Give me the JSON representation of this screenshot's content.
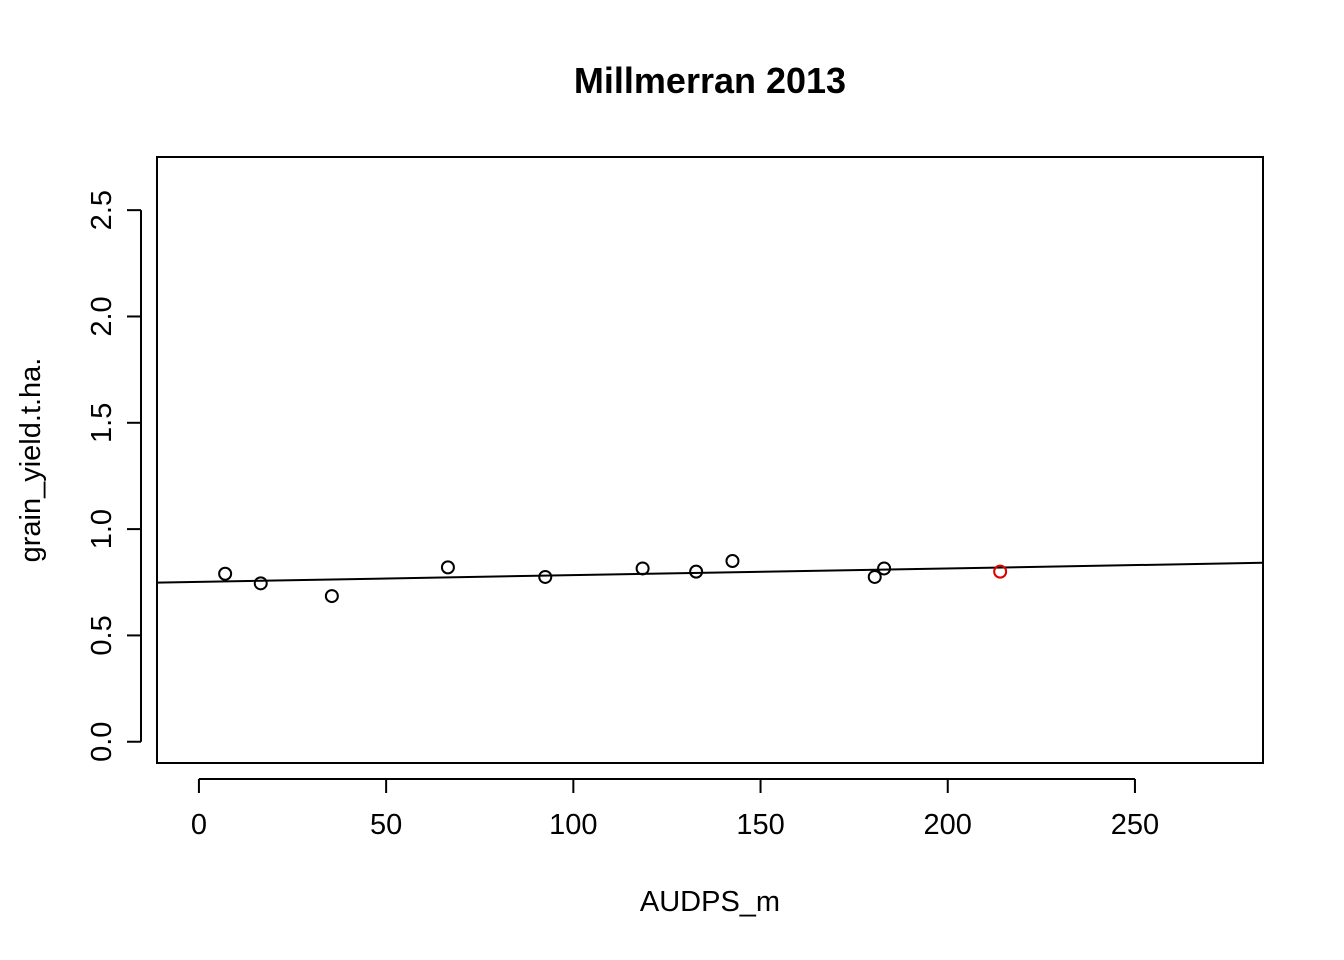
{
  "chart_data": {
    "type": "scatter",
    "title": "Millmerran 2013",
    "xlabel": "AUDPS_m",
    "ylabel": "grain_yield.t.ha.",
    "xlim": [
      -11.2,
      284.2
    ],
    "ylim": [
      -0.1,
      2.75
    ],
    "xticks": [
      0,
      50,
      100,
      150,
      200,
      250
    ],
    "yticks": [
      0.0,
      0.5,
      1.0,
      1.5,
      2.0,
      2.5
    ],
    "xtick_labels": [
      "0",
      "50",
      "100",
      "150",
      "200",
      "250"
    ],
    "ytick_labels": [
      "0.0",
      "0.5",
      "1.0",
      "1.5",
      "2.0",
      "2.5"
    ],
    "grid": false,
    "points": [
      {
        "x": 7.0,
        "y": 0.79,
        "color": "#000000"
      },
      {
        "x": 16.5,
        "y": 0.745,
        "color": "#000000"
      },
      {
        "x": 35.5,
        "y": 0.685,
        "color": "#000000"
      },
      {
        "x": 66.5,
        "y": 0.82,
        "color": "#000000"
      },
      {
        "x": 92.5,
        "y": 0.775,
        "color": "#000000"
      },
      {
        "x": 118.5,
        "y": 0.815,
        "color": "#000000"
      },
      {
        "x": 132.8,
        "y": 0.8,
        "color": "#000000"
      },
      {
        "x": 142.5,
        "y": 0.85,
        "color": "#000000"
      },
      {
        "x": 180.5,
        "y": 0.775,
        "color": "#000000"
      },
      {
        "x": 183.0,
        "y": 0.815,
        "color": "#000000"
      },
      {
        "x": 214.0,
        "y": 0.8,
        "color": "#dd0000"
      }
    ],
    "regression_line": {
      "intercept": 0.752,
      "slope": 0.000315
    }
  }
}
